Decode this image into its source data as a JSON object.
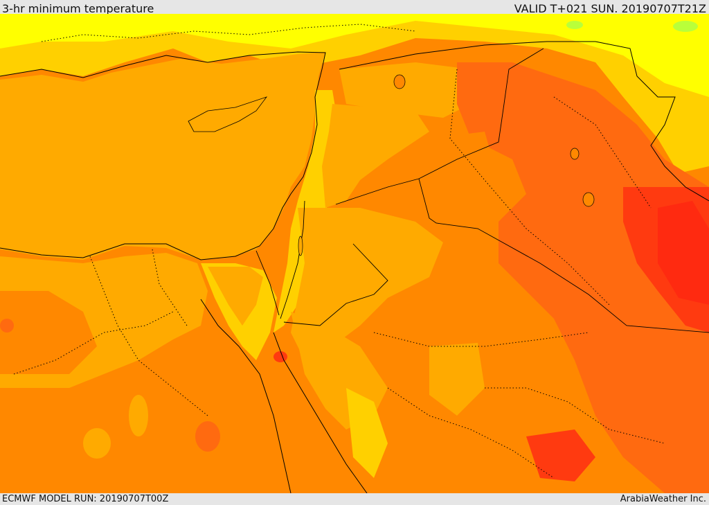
{
  "header": {
    "title": "3-hr minimum temperature",
    "valid": "VALID T+021 SUN. 20190707T21Z"
  },
  "footer": {
    "model_run": "ECMWF MODEL RUN: 20190707T00Z",
    "credit": "ArabiaWeather Inc."
  },
  "colors": {
    "sea": "#ffaa00",
    "warm_mid": "#ff8800",
    "hot": "#ff6a10",
    "hottest": "#ff3a10",
    "cool": "#ffd000",
    "cooler": "#ffff00",
    "coolest": "#b9ff3a",
    "border": "#000000"
  }
}
